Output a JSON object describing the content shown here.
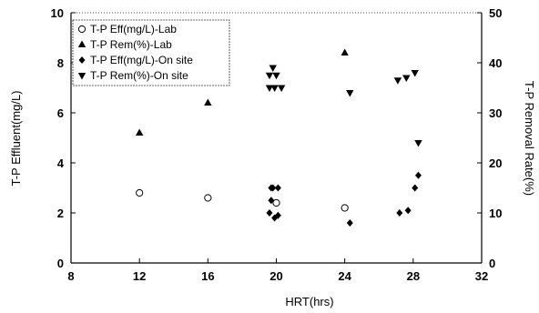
{
  "chart_data": {
    "type": "scatter",
    "xlabel": "HRT(hrs)",
    "ylabel": "T-P Effluent(mg/L)",
    "y2label": "T-P Removal Rate(%)",
    "xlim": [
      8,
      32
    ],
    "ylim": [
      0,
      10
    ],
    "y2lim": [
      0,
      50
    ],
    "xticks": [
      "8",
      "12",
      "16",
      "20",
      "24",
      "28",
      "32"
    ],
    "yticks": [
      "0",
      "2",
      "4",
      "6",
      "8",
      "10"
    ],
    "y2ticks": [
      "0",
      "10",
      "20",
      "30",
      "40",
      "50"
    ],
    "grid": false,
    "legend_position": "top-left",
    "series": [
      {
        "name": "T-P Eff(mg/L)-Lab",
        "marker": "circle-open",
        "axis": "left",
        "points": [
          [
            12,
            2.8
          ],
          [
            16,
            2.6
          ],
          [
            20,
            2.4
          ],
          [
            24,
            2.2
          ]
        ]
      },
      {
        "name": "T-P Rem(%)-Lab",
        "marker": "triangle-up",
        "axis": "right",
        "points": [
          [
            12,
            26
          ],
          [
            16,
            32
          ],
          [
            24,
            42
          ]
        ]
      },
      {
        "name": "T-P Eff(mg/L)-On site",
        "marker": "diamond",
        "axis": "left",
        "points": [
          [
            19.6,
            2.0
          ],
          [
            19.7,
            3.0
          ],
          [
            19.8,
            3.0
          ],
          [
            20.1,
            3.0
          ],
          [
            19.7,
            2.5
          ],
          [
            19.9,
            1.8
          ],
          [
            20.1,
            1.9
          ],
          [
            24.3,
            1.6
          ],
          [
            27.2,
            2.0
          ],
          [
            27.7,
            2.1
          ],
          [
            28.1,
            3.0
          ],
          [
            28.3,
            3.5
          ]
        ]
      },
      {
        "name": "T-P Rem(%)-On site",
        "marker": "triangle-down",
        "axis": "right",
        "points": [
          [
            19.6,
            37.5
          ],
          [
            19.8,
            39
          ],
          [
            20.0,
            37.5
          ],
          [
            19.6,
            35
          ],
          [
            19.9,
            35
          ],
          [
            20.3,
            35
          ],
          [
            24.3,
            34
          ],
          [
            27.1,
            36.5
          ],
          [
            27.6,
            37
          ],
          [
            28.1,
            38
          ],
          [
            28.3,
            24
          ]
        ]
      }
    ]
  }
}
